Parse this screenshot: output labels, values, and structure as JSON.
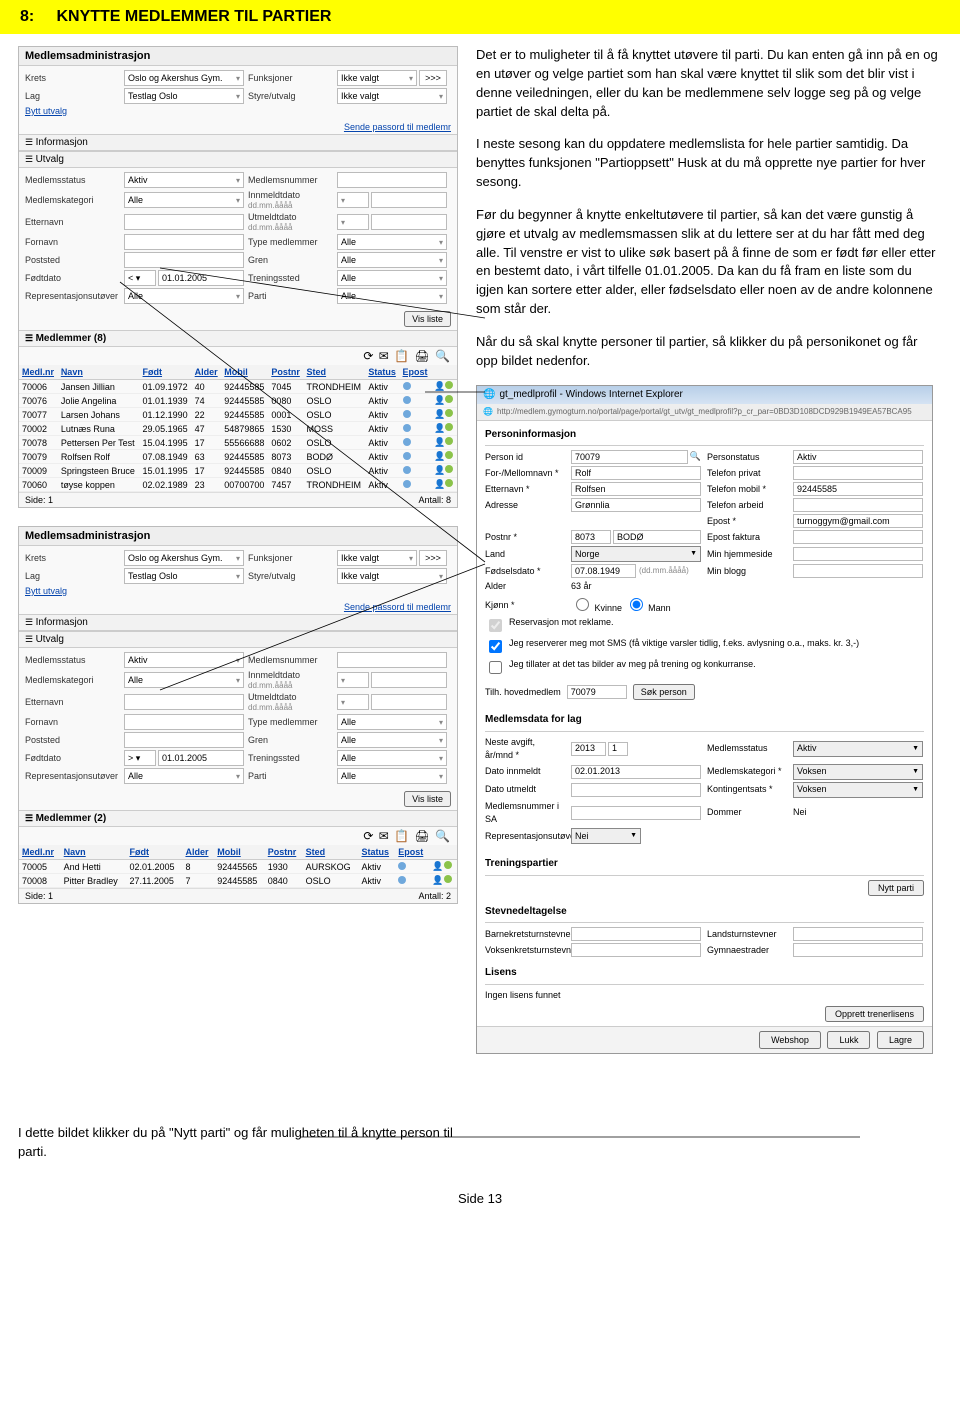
{
  "header": {
    "num": "8:",
    "title": "KNYTTE MEDLEMMER TIL PARTIER"
  },
  "body": {
    "p1": "Det er to muligheter til å få knyttet utøvere til parti. Du kan enten gå inn på en og en utøver og velge partiet som han skal være knyttet til slik som det blir vist i denne veiledningen, eller du kan be medlemmene selv logge seg på og velge partiet de skal delta på.",
    "p2": "I neste sesong kan du oppdatere medlemslista for hele partier samtidig. Da benyttes funksjonen \"Partioppsett\" Husk at du må opprette nye partier for hver sesong.",
    "p3": "Før du begynner å knytte enkeltutøvere til partier, så kan det være gunstig å gjøre et utvalg av medlemsmassen slik at du lettere ser at du har fått med deg alle. Til venstre er vist to ulike søk basert på å finne de som er født før eller etter en bestemt dato, i vårt tilfelle 01.01.2005. Da kan du få fram en liste som du igjen kan sortere etter alder, eller fødselsdato eller noen av de andre kolonnene som står der.",
    "p4": "Når du så skal knytte personer til partier, så klikker du på personikonet og får opp bildet nedenfor.",
    "p5": "I dette bildet klikker du på \"Nytt parti\" og får muligheten til å knytte person til parti."
  },
  "panel": {
    "title": "Medlemsadministrasjon",
    "labels": {
      "krets": "Krets",
      "lag": "Lag",
      "bytt": "Bytt utvalg",
      "funksjoner": "Funksjoner",
      "styre": "Styre/utvalg",
      "ikkevalgt": "Ikke valgt",
      "info": "Informasjon",
      "utvalg": "Utvalg",
      "medlemsstatus": "Medlemsstatus",
      "kategori": "Medlemskategori",
      "etternavn": "Etternavn",
      "fornavn": "Fornavn",
      "poststed": "Poststed",
      "fodtdato": "Fødtdato",
      "rep": "Representasjonsutøver",
      "medlemsnummer": "Medlemsnummer",
      "innmeldt": "Innmeldtdato",
      "utmeldt": "Utmeldtdato",
      "ddmm": "dd.mm.åååå",
      "type": "Type medlemmer",
      "gren": "Gren",
      "treningssted": "Treningssted",
      "parti": "Parti",
      "alle": "Alle",
      "aktiv": "Aktiv",
      "sendepass": "Sende passord til medlemr",
      "visliste": "Vis liste"
    },
    "krets_val": "Oslo og Akershus Gym.",
    "lag_val": "Testlag Oslo",
    "date1": "01.01.2005",
    "op1": "< ▾",
    "op2": "> ▾",
    "members8_title": "Medlemmer  (8)",
    "members2_title": "Medlemmer  (2)",
    "cols": {
      "nr": "Medl.nr",
      "navn": "Navn",
      "fodt": "Født",
      "alder": "Alder",
      "mobil": "Mobil",
      "postnr": "Postnr",
      "sted": "Sted",
      "status": "Status",
      "epost": "Epost"
    },
    "rows8": [
      [
        "70006",
        "Jansen Jillian",
        "01.09.1972",
        "40",
        "92445585",
        "7045",
        "TRONDHEIM",
        "Aktiv"
      ],
      [
        "70076",
        "Jolie Angelina",
        "01.01.1939",
        "74",
        "92445585",
        "0080",
        "OSLO",
        "Aktiv"
      ],
      [
        "70077",
        "Larsen Johans",
        "01.12.1990",
        "22",
        "92445585",
        "0001",
        "OSLO",
        "Aktiv"
      ],
      [
        "70002",
        "Lutnæs Runa",
        "29.05.1965",
        "47",
        "54879865",
        "1530",
        "MOSS",
        "Aktiv"
      ],
      [
        "70078",
        "Pettersen Per Test",
        "15.04.1995",
        "17",
        "55566688",
        "0602",
        "OSLO",
        "Aktiv"
      ],
      [
        "70079",
        "Rolfsen Rolf",
        "07.08.1949",
        "63",
        "92445585",
        "8073",
        "BODØ",
        "Aktiv"
      ],
      [
        "70009",
        "Springsteen Bruce",
        "15.01.1995",
        "17",
        "92445585",
        "0840",
        "OSLO",
        "Aktiv"
      ],
      [
        "70060",
        "tøyse koppen",
        "02.02.1989",
        "23",
        "00700700",
        "7457",
        "TRONDHEIM",
        "Aktiv"
      ]
    ],
    "rows2": [
      [
        "70005",
        "And Hetti",
        "02.01.2005",
        "8",
        "92445565",
        "1930",
        "AURSKOG",
        "Aktiv"
      ],
      [
        "70008",
        "Pitter Bradley",
        "27.11.2005",
        "7",
        "92445585",
        "0840",
        "OSLO",
        "Aktiv"
      ]
    ],
    "side": "Side: 1",
    "antall8": "Antall: 8",
    "antall2": "Antall: 2"
  },
  "pi": {
    "win_title": "gt_medlprofil - Windows Internet Explorer",
    "url": "http://medlem.gymogturn.no/portal/page/portal/gt_utv/gt_medlprofil?p_cr_par=0BD3D108DCD929B1949EA57BCA95",
    "head": "Personinformasjon",
    "lbl": {
      "pid": "Person id",
      "for": "For-/Mellomnavn *",
      "ett": "Etternavn *",
      "adr": "Adresse",
      "postnr": "Postnr *",
      "land": "Land",
      "fdato": "Fødselsdato *",
      "alder": "Alder",
      "kjonn": "Kjønn *",
      "pstat": "Personstatus",
      "tp": "Telefon privat",
      "tm": "Telefon mobil *",
      "ta": "Telefon arbeid",
      "epost": "Epost *",
      "efakt": "Epost faktura",
      "hjem": "Min hjemmeside",
      "blogg": "Min blogg",
      "tilh": "Tilh. hovedmedlem",
      "sok": "Søk person",
      "ddmm": "(dd.mm.åååå)"
    },
    "val": {
      "pid": "70079",
      "for": "Rolf",
      "ett": "Rolfsen",
      "adr": "Grønnlia",
      "postnr": "8073",
      "poststed": "BODØ",
      "land": "Norge",
      "fdato": "07.08.1949",
      "alder": "63 år",
      "pstat": "Aktiv",
      "tm": "92445585",
      "epost": "turnoggym@gmail.com",
      "tilh": "70079"
    },
    "radio": {
      "k": "Kvinne",
      "m": "Mann"
    },
    "chk1": "Reservasjon mot reklame.",
    "chk2": "Jeg reserverer meg mot SMS (få viktige varsler tidlig, f.eks. avlysning o.a., maks. kr. 3,-)",
    "chk3": "Jeg tillater at det tas bilder av meg på trening og konkurranse.",
    "md_head": "Medlemsdata for lag",
    "md": {
      "neste": "Neste avgift, år/mnd *",
      "aar": "2013",
      "mnd": "1",
      "dinn": "Dato innmeldt",
      "dinn_v": "02.01.2013",
      "dut": "Dato utmeldt",
      "mnr": "Medlemsnummer i SA",
      "rep": "Representasjonsutøver",
      "rep_v": "Nei",
      "mstat": "Medlemsstatus",
      "mstat_v": "Aktiv",
      "mkat": "Medlemskategori *",
      "mkat_v": "Voksen",
      "ksats": "Kontingentsats *",
      "ksats_v": "Voksen",
      "dom": "Dommer",
      "dom_v": "Nei"
    },
    "tp_head": "Treningspartier",
    "nytt": "Nytt parti",
    "sd_head": "Stevnedeltagelse",
    "sd": {
      "b": "Barnekretsturnstevner",
      "v": "Voksenkretsturnstevner",
      "l": "Landsturnstevner",
      "g": "Gymnaestrader"
    },
    "lis_head": "Lisens",
    "lis": "Ingen lisens funnet",
    "olis": "Opprett trenerlisens",
    "btns": {
      "w": "Webshop",
      "l": "Lukk",
      "la": "Lagre"
    }
  },
  "footer": "Side 13"
}
